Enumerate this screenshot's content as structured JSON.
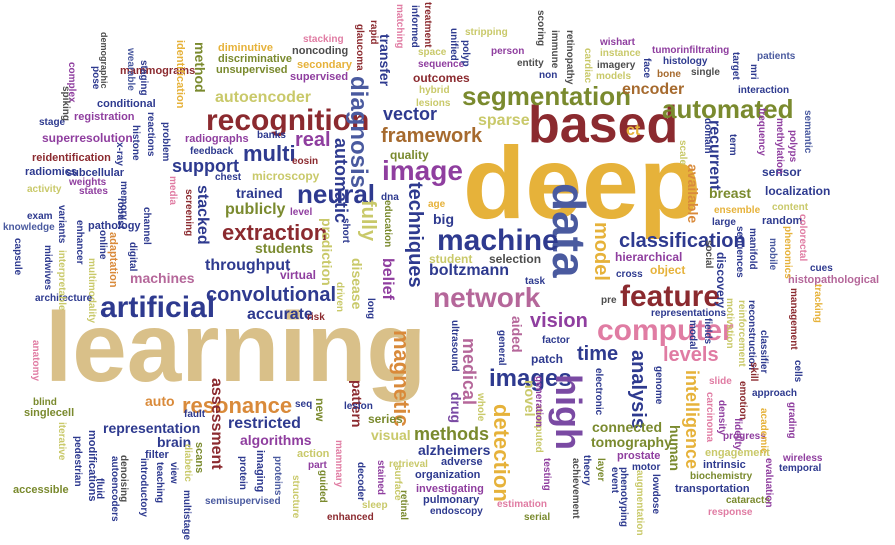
{
  "colors": {
    "gold": "#e6b23a",
    "tan": "#d9c089",
    "maroon": "#8b2a2f",
    "olive": "#7a8a2e",
    "navy": "#2e3a8f",
    "mauve": "#b5679a",
    "pink": "#e07ca3",
    "violet": "#8f3e9f",
    "purple": "#7a4aa3",
    "brown": "#a66a2e",
    "slate": "#4a5a9f",
    "green": "#6a8f3a",
    "light": "#c9c96a",
    "gray": "#4d4d4d",
    "orange": "#d98a3a",
    "red": "#b83a3a"
  },
  "words": [
    {
      "text": "deep",
      "color": "gold"
    },
    {
      "text": "learning",
      "color": "tan"
    },
    {
      "text": "based",
      "color": "maroon"
    },
    {
      "text": "data",
      "color": "slate"
    },
    {
      "text": "automated",
      "color": "olive"
    },
    {
      "text": "segmentation",
      "color": "olive"
    },
    {
      "text": "recognition",
      "color": "maroon"
    },
    {
      "text": "artificial",
      "color": "navy"
    },
    {
      "text": "network",
      "color": "mauve"
    },
    {
      "text": "feature",
      "color": "maroon"
    },
    {
      "text": "computer",
      "color": "pink"
    },
    {
      "text": "image",
      "color": "violet"
    },
    {
      "text": "machine",
      "color": "navy"
    },
    {
      "text": "images",
      "color": "navy"
    },
    {
      "text": "high",
      "color": "purple"
    },
    {
      "text": "neural",
      "color": "navy"
    },
    {
      "text": "classification",
      "color": "navy"
    },
    {
      "text": "convolutional",
      "color": "navy"
    },
    {
      "text": "framework",
      "color": "brown"
    },
    {
      "text": "resonance",
      "color": "orange"
    },
    {
      "text": "detection",
      "color": "gold"
    },
    {
      "text": "diagnosis",
      "color": "slate"
    },
    {
      "text": "extraction",
      "color": "maroon"
    },
    {
      "text": "multi",
      "color": "navy"
    },
    {
      "text": "support",
      "color": "navy"
    },
    {
      "text": "real",
      "color": "violet"
    },
    {
      "text": "techniques",
      "color": "navy"
    },
    {
      "text": "vision",
      "color": "violet"
    },
    {
      "text": "vector",
      "color": "navy"
    },
    {
      "text": "model",
      "color": "gold"
    },
    {
      "text": "time",
      "color": "navy"
    },
    {
      "text": "levels",
      "color": "pink"
    },
    {
      "text": "analysis",
      "color": "navy"
    },
    {
      "text": "intelligence",
      "color": "gold"
    },
    {
      "text": "sparse",
      "color": "light"
    },
    {
      "text": "methods",
      "color": "olive"
    },
    {
      "text": "magnetic",
      "color": "orange"
    },
    {
      "text": "medical",
      "color": "mauve"
    },
    {
      "text": "fully",
      "color": "light"
    },
    {
      "text": "automatic",
      "color": "navy"
    },
    {
      "text": "autoencoder",
      "color": "light"
    },
    {
      "text": "encoder",
      "color": "brown"
    },
    {
      "text": "recurrent",
      "color": "navy"
    },
    {
      "text": "boltzmann",
      "color": "navy"
    },
    {
      "text": "student",
      "color": "light"
    },
    {
      "text": "selection",
      "color": "gray"
    },
    {
      "text": "publicly",
      "color": "olive"
    },
    {
      "text": "throughput",
      "color": "navy"
    },
    {
      "text": "machines",
      "color": "mauve"
    },
    {
      "text": "accurate",
      "color": "navy"
    },
    {
      "text": "stacked",
      "color": "navy"
    },
    {
      "text": "trained",
      "color": "navy"
    },
    {
      "text": "students",
      "color": "olive"
    },
    {
      "text": "restricted",
      "color": "navy"
    },
    {
      "text": "representation",
      "color": "navy"
    },
    {
      "text": "algorithms",
      "color": "violet"
    },
    {
      "text": "assessment",
      "color": "maroon"
    },
    {
      "text": "brain",
      "color": "navy"
    },
    {
      "text": "connected",
      "color": "olive"
    },
    {
      "text": "tomography",
      "color": "olive"
    },
    {
      "text": "human",
      "color": "olive"
    },
    {
      "text": "novel",
      "color": "light"
    },
    {
      "text": "drug",
      "color": "purple"
    },
    {
      "text": "aided",
      "color": "mauve"
    },
    {
      "text": "alzheimers",
      "color": "navy"
    },
    {
      "text": "belief",
      "color": "violet"
    },
    {
      "text": "disease",
      "color": "light"
    },
    {
      "text": "prediction",
      "color": "light"
    },
    {
      "text": "pattern",
      "color": "maroon"
    },
    {
      "text": "visual",
      "color": "light"
    },
    {
      "text": "available",
      "color": "orange"
    },
    {
      "text": "breast",
      "color": "olive"
    },
    {
      "text": "hierarchical",
      "color": "violet"
    },
    {
      "text": "object",
      "color": "gold"
    },
    {
      "text": "quality",
      "color": "olive"
    },
    {
      "text": "microscopy",
      "color": "light"
    },
    {
      "text": "outcomes",
      "color": "maroon"
    },
    {
      "text": "localization",
      "color": "navy"
    },
    {
      "text": "histopathological",
      "color": "mauve"
    },
    {
      "text": "method",
      "color": "olive"
    },
    {
      "text": "radiographs",
      "color": "violet"
    },
    {
      "text": "superresolution",
      "color": "violet"
    },
    {
      "text": "reidentification",
      "color": "maroon"
    },
    {
      "text": "radiomics",
      "color": "navy"
    },
    {
      "text": "mammograms",
      "color": "maroon"
    },
    {
      "text": "supervised",
      "color": "violet"
    },
    {
      "text": "unsupervised",
      "color": "olive"
    },
    {
      "text": "discriminative",
      "color": "olive"
    },
    {
      "text": "diminutive",
      "color": "gold"
    },
    {
      "text": "noncoding",
      "color": "gray"
    },
    {
      "text": "secondary",
      "color": "gold"
    },
    {
      "text": "identification",
      "color": "gold"
    },
    {
      "text": "wearable",
      "color": "slate"
    },
    {
      "text": "complex",
      "color": "violet"
    },
    {
      "text": "conditional",
      "color": "navy"
    },
    {
      "text": "registration",
      "color": "violet"
    },
    {
      "text": "subcellular",
      "color": "navy"
    },
    {
      "text": "knowledge",
      "color": "slate"
    },
    {
      "text": "pathology",
      "color": "navy"
    },
    {
      "text": "adaptation",
      "color": "orange"
    },
    {
      "text": "multimodality",
      "color": "light"
    },
    {
      "text": "architecture",
      "color": "navy"
    },
    {
      "text": "anatomy",
      "color": "pink"
    },
    {
      "text": "singlecell",
      "color": "olive"
    },
    {
      "text": "blind",
      "color": "olive"
    },
    {
      "text": "accessible",
      "color": "olive"
    },
    {
      "text": "modifications",
      "color": "navy"
    },
    {
      "text": "denoising",
      "color": "gray"
    },
    {
      "text": "filter",
      "color": "navy"
    },
    {
      "text": "scans",
      "color": "olive"
    },
    {
      "text": "imaging",
      "color": "navy"
    },
    {
      "text": "proteins",
      "color": "slate"
    },
    {
      "text": "structure",
      "color": "light"
    },
    {
      "text": "action",
      "color": "light"
    },
    {
      "text": "part",
      "color": "violet"
    },
    {
      "text": "semisupervised",
      "color": "slate"
    },
    {
      "text": "enhanced",
      "color": "maroon"
    },
    {
      "text": "organization",
      "color": "navy"
    },
    {
      "text": "investigating",
      "color": "violet"
    },
    {
      "text": "pulmonary",
      "color": "navy"
    },
    {
      "text": "endoscopy",
      "color": "navy"
    },
    {
      "text": "estimation",
      "color": "pink"
    },
    {
      "text": "serial",
      "color": "olive"
    },
    {
      "text": "retrieval",
      "color": "light"
    },
    {
      "text": "adverse",
      "color": "navy"
    },
    {
      "text": "prostate",
      "color": "violet"
    },
    {
      "text": "engagement",
      "color": "light"
    },
    {
      "text": "intrinsic",
      "color": "navy"
    },
    {
      "text": "biochemistry",
      "color": "olive"
    },
    {
      "text": "transportation",
      "color": "navy"
    },
    {
      "text": "cataracts",
      "color": "olive"
    },
    {
      "text": "response",
      "color": "pink"
    },
    {
      "text": "temporal",
      "color": "navy"
    },
    {
      "text": "wireless",
      "color": "violet"
    },
    {
      "text": "evaluation",
      "color": "violet"
    },
    {
      "text": "progress",
      "color": "violet"
    },
    {
      "text": "approach",
      "color": "navy"
    },
    {
      "text": "reconstruction",
      "color": "navy"
    },
    {
      "text": "cells",
      "color": "navy"
    },
    {
      "text": "management",
      "color": "maroon"
    },
    {
      "text": "cues",
      "color": "navy"
    },
    {
      "text": "random",
      "color": "navy"
    },
    {
      "text": "content",
      "color": "light"
    },
    {
      "text": "ensemble",
      "color": "gold"
    },
    {
      "text": "large",
      "color": "navy"
    },
    {
      "text": "semantic",
      "color": "slate"
    },
    {
      "text": "polyps",
      "color": "violet"
    },
    {
      "text": "patients",
      "color": "slate"
    },
    {
      "text": "interaction",
      "color": "navy"
    },
    {
      "text": "histology",
      "color": "navy"
    },
    {
      "text": "tumorinfiltrating",
      "color": "violet"
    },
    {
      "text": "wishart",
      "color": "violet"
    },
    {
      "text": "instance",
      "color": "light"
    },
    {
      "text": "imagery",
      "color": "gray"
    },
    {
      "text": "models",
      "color": "light"
    },
    {
      "text": "bone",
      "color": "brown"
    },
    {
      "text": "single",
      "color": "gray"
    },
    {
      "text": "face",
      "color": "navy"
    },
    {
      "text": "person",
      "color": "violet"
    },
    {
      "text": "entity",
      "color": "gray"
    },
    {
      "text": "non",
      "color": "navy"
    },
    {
      "text": "sequence",
      "color": "violet"
    },
    {
      "text": "hybrid",
      "color": "light"
    },
    {
      "text": "lesions",
      "color": "light"
    },
    {
      "text": "space",
      "color": "light"
    },
    {
      "text": "ct",
      "color": "gold"
    },
    {
      "text": "sensor",
      "color": "navy"
    },
    {
      "text": "cross",
      "color": "navy"
    },
    {
      "text": "representations",
      "color": "navy"
    },
    {
      "text": "task",
      "color": "navy"
    },
    {
      "text": "patch",
      "color": "navy"
    },
    {
      "text": "factor",
      "color": "navy"
    },
    {
      "text": "dna",
      "color": "navy"
    },
    {
      "text": "age",
      "color": "gold"
    },
    {
      "text": "big",
      "color": "navy"
    },
    {
      "text": "lesion",
      "color": "navy"
    },
    {
      "text": "series",
      "color": "olive"
    },
    {
      "text": "seq",
      "color": "navy"
    },
    {
      "text": "risk",
      "color": "maroon"
    },
    {
      "text": "level",
      "color": "violet"
    },
    {
      "text": "chest",
      "color": "navy"
    },
    {
      "text": "eosin",
      "color": "maroon"
    },
    {
      "text": "feedback",
      "color": "navy"
    },
    {
      "text": "banks",
      "color": "navy"
    },
    {
      "text": "emotion",
      "color": "maroon"
    },
    {
      "text": "slide",
      "color": "pink"
    },
    {
      "text": "fault",
      "color": "navy"
    },
    {
      "text": "auto",
      "color": "orange"
    },
    {
      "text": "new",
      "color": "olive"
    },
    {
      "text": "virtual",
      "color": "violet"
    },
    {
      "text": "exam",
      "color": "navy"
    },
    {
      "text": "stage",
      "color": "navy"
    },
    {
      "text": "activity",
      "color": "light"
    },
    {
      "text": "states",
      "color": "violet"
    },
    {
      "text": "weights",
      "color": "violet"
    },
    {
      "text": "spiking",
      "color": "gray"
    },
    {
      "text": "staging",
      "color": "navy"
    },
    {
      "text": "pose",
      "color": "navy"
    },
    {
      "text": "digital",
      "color": "navy"
    },
    {
      "text": "channel",
      "color": "navy"
    },
    {
      "text": "online",
      "color": "navy"
    },
    {
      "text": "memory",
      "color": "navy"
    },
    {
      "text": "media",
      "color": "pink"
    },
    {
      "text": "problem",
      "color": "navy"
    },
    {
      "text": "reactions",
      "color": "navy"
    },
    {
      "text": "histone",
      "color": "navy"
    },
    {
      "text": "screening",
      "color": "maroon"
    },
    {
      "text": "genome",
      "color": "navy"
    },
    {
      "text": "carcinoma",
      "color": "pink"
    },
    {
      "text": "stained",
      "color": "violet"
    },
    {
      "text": "surface",
      "color": "light"
    },
    {
      "text": "decoder",
      "color": "navy"
    },
    {
      "text": "guided",
      "color": "olive"
    },
    {
      "text": "testing",
      "color": "violet"
    },
    {
      "text": "computed",
      "color": "light"
    },
    {
      "text": "theory",
      "color": "navy"
    },
    {
      "text": "layer",
      "color": "olive"
    },
    {
      "text": "achievement",
      "color": "gray"
    },
    {
      "text": "event",
      "color": "navy"
    },
    {
      "text": "phenotyping",
      "color": "navy"
    },
    {
      "text": "motor",
      "color": "navy"
    },
    {
      "text": "lowdose",
      "color": "navy"
    },
    {
      "text": "treatment",
      "color": "maroon"
    },
    {
      "text": "scoring",
      "color": "gray"
    },
    {
      "text": "immune",
      "color": "gray"
    },
    {
      "text": "retinopathy",
      "color": "gray"
    },
    {
      "text": "target",
      "color": "navy"
    },
    {
      "text": "mri",
      "color": "navy"
    },
    {
      "text": "stacking",
      "color": "pink"
    },
    {
      "text": "matching",
      "color": "pink"
    },
    {
      "text": "informed",
      "color": "navy"
    },
    {
      "text": "glaucoma",
      "color": "maroon"
    },
    {
      "text": "rapid",
      "color": "maroon"
    },
    {
      "text": "stripping",
      "color": "light"
    },
    {
      "text": "cardiac",
      "color": "light"
    },
    {
      "text": "driven",
      "color": "light"
    },
    {
      "text": "short",
      "color": "navy"
    },
    {
      "text": "long",
      "color": "navy"
    },
    {
      "text": "transfer",
      "color": "navy"
    },
    {
      "text": "education",
      "color": "olive"
    },
    {
      "text": "generation",
      "color": "violet"
    },
    {
      "text": "general",
      "color": "navy"
    },
    {
      "text": "electronic",
      "color": "navy"
    },
    {
      "text": "ultrasound",
      "color": "navy"
    },
    {
      "text": "whole",
      "color": "light"
    },
    {
      "text": "x-ray",
      "color": "navy"
    },
    {
      "text": "robust",
      "color": "navy"
    },
    {
      "text": "enhancer",
      "color": "navy"
    },
    {
      "text": "variants",
      "color": "navy"
    },
    {
      "text": "capsule",
      "color": "navy"
    },
    {
      "text": "midwives",
      "color": "navy"
    },
    {
      "text": "interpretable",
      "color": "light"
    },
    {
      "text": "iterative",
      "color": "light"
    },
    {
      "text": "pedestrian",
      "color": "navy"
    },
    {
      "text": "fluid",
      "color": "navy"
    },
    {
      "text": "autoencoders",
      "color": "navy"
    },
    {
      "text": "introductory",
      "color": "navy"
    },
    {
      "text": "teaching",
      "color": "navy"
    },
    {
      "text": "view",
      "color": "navy"
    },
    {
      "text": "diabetic",
      "color": "light"
    },
    {
      "text": "protein",
      "color": "navy"
    },
    {
      "text": "mammary",
      "color": "pink"
    },
    {
      "text": "sleep",
      "color": "light"
    },
    {
      "text": "multistage",
      "color": "navy"
    },
    {
      "text": "retinal",
      "color": "olive"
    },
    {
      "text": "augmentation",
      "color": "light"
    },
    {
      "text": "demographic",
      "color": "gray"
    },
    {
      "text": "unified",
      "color": "navy"
    },
    {
      "text": "polyp",
      "color": "navy"
    },
    {
      "text": "frequency",
      "color": "violet"
    },
    {
      "text": "methylation",
      "color": "violet"
    },
    {
      "text": "domain",
      "color": "navy"
    },
    {
      "text": "term",
      "color": "navy"
    },
    {
      "text": "scale",
      "color": "light"
    },
    {
      "text": "social",
      "color": "gray"
    },
    {
      "text": "discovery",
      "color": "navy"
    },
    {
      "text": "manifold",
      "color": "navy"
    },
    {
      "text": "sequences",
      "color": "navy"
    },
    {
      "text": "phenomics",
      "color": "gold"
    },
    {
      "text": "colorectal",
      "color": "pink"
    },
    {
      "text": "mobile",
      "color": "slate"
    },
    {
      "text": "tracking",
      "color": "gold"
    },
    {
      "text": "pre",
      "color": "gray"
    },
    {
      "text": "reinforcement",
      "color": "light"
    },
    {
      "text": "motivation",
      "color": "light"
    },
    {
      "text": "classifier",
      "color": "navy"
    },
    {
      "text": "fields",
      "color": "navy"
    },
    {
      "text": "density",
      "color": "violet"
    },
    {
      "text": "fidelity",
      "color": "violet"
    },
    {
      "text": "skill",
      "color": "maroon"
    },
    {
      "text": "academic",
      "color": "gold"
    },
    {
      "text": "grading",
      "color": "violet"
    },
    {
      "text": "modal",
      "color": "navy"
    }
  ]
}
